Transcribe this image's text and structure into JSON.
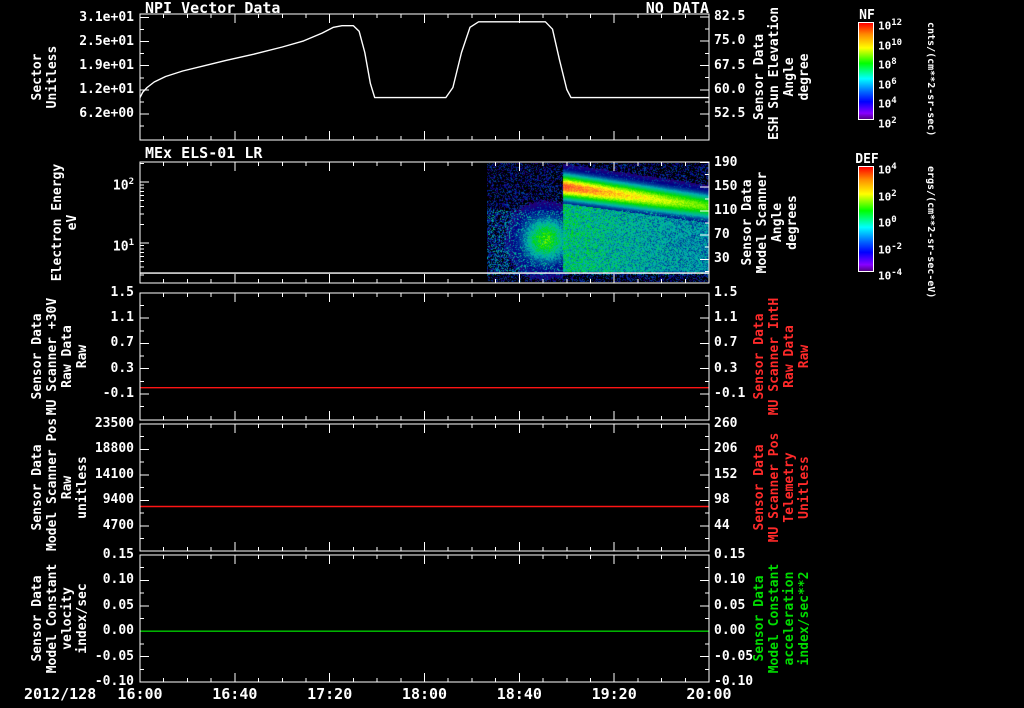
{
  "date_label": "2012/128",
  "x_axis": {
    "range_hours": [
      16,
      20
    ],
    "tick_hours": [
      16,
      16.6667,
      17.3333,
      18,
      18.6667,
      19.3333,
      20
    ],
    "tick_labels": [
      "16:00",
      "16:40",
      "17:20",
      "18:00",
      "18:40",
      "19:20",
      "20:00"
    ],
    "minor_tick_minutes": 10
  },
  "colorbars": [
    {
      "title": "NF",
      "unit": "cnts/(cm**2-sr-sec)",
      "ticks": [
        "10^12",
        "10^10",
        "10^8",
        "10^6",
        "10^4",
        "10^2"
      ]
    },
    {
      "title": "DEF",
      "unit": "ergs/(cm**2-sr-sec-eV)",
      "ticks": [
        "10^4",
        "10^2",
        "10^0",
        "10^-2",
        "10^-4"
      ]
    }
  ],
  "chart_data": [
    {
      "id": "npi-vector-data",
      "type": "line",
      "title": "NPI Vector Data",
      "note": "NO DATA",
      "left_axis": {
        "label": "Sector\nUnitless",
        "scale": "linear",
        "range": [
          -0.5,
          31.9
        ],
        "ticks": [
          {
            "v": 31.0,
            "t": "3.1e+01"
          },
          {
            "v": 24.8,
            "t": "2.5e+01"
          },
          {
            "v": 18.6,
            "t": "1.9e+01"
          },
          {
            "v": 12.4,
            "t": "1.2e+01"
          },
          {
            "v": 6.2,
            "t": "6.2e+00"
          }
        ]
      },
      "right_axis": {
        "label": "Sensor Data\nESH Sun Elevation\nAngle\ndegree",
        "scale": "linear",
        "range": [
          44.5,
          83.4
        ],
        "ticks": [
          {
            "v": 82.5,
            "t": "82.5"
          },
          {
            "v": 75.0,
            "t": "75.0"
          },
          {
            "v": 67.5,
            "t": "67.5"
          },
          {
            "v": 60.0,
            "t": "60.0"
          },
          {
            "v": 52.5,
            "t": "52.5"
          }
        ]
      },
      "series": [
        {
          "name": "esh-sun-elevation-angle",
          "axis": "right",
          "color": "#ffffff",
          "points": [
            [
              16.0,
              57.6
            ],
            [
              16.02,
              59.3
            ],
            [
              16.05,
              60.7
            ],
            [
              16.1,
              62.4
            ],
            [
              16.18,
              64.1
            ],
            [
              16.3,
              65.8
            ],
            [
              16.45,
              67.4
            ],
            [
              16.6,
              69.0
            ],
            [
              16.8,
              71.0
            ],
            [
              17.0,
              73.2
            ],
            [
              17.15,
              75.1
            ],
            [
              17.28,
              77.5
            ],
            [
              17.36,
              79.3
            ],
            [
              17.42,
              79.8
            ],
            [
              17.5,
              79.8
            ],
            [
              17.54,
              78.1
            ],
            [
              17.58,
              71.5
            ],
            [
              17.62,
              61.9
            ],
            [
              17.65,
              57.6
            ],
            [
              18.15,
              57.6
            ],
            [
              18.2,
              60.7
            ],
            [
              18.26,
              71.5
            ],
            [
              18.32,
              79.3
            ],
            [
              18.38,
              81.0
            ],
            [
              18.85,
              81.0
            ],
            [
              18.9,
              78.7
            ],
            [
              18.95,
              69.1
            ],
            [
              19.0,
              60.1
            ],
            [
              19.03,
              57.6
            ],
            [
              20.0,
              57.6
            ]
          ]
        }
      ]
    },
    {
      "id": "mex-els-01-lr",
      "type": "spectrogram",
      "title": "MEx ELS-01 LR",
      "left_axis": {
        "label": "Electron Energy\neV",
        "scale": "log",
        "range": [
          2.2,
          213
        ],
        "ticks": [
          {
            "v": 100,
            "t": "10^2"
          },
          {
            "v": 10,
            "t": "10^1"
          }
        ]
      },
      "right_axis": {
        "label": "Sensor Data\nModel Scanner\nAngle\ndegrees",
        "scale": "linear",
        "range": [
          -9.3,
          191
        ],
        "ticks": [
          {
            "v": 190,
            "t": "190"
          },
          {
            "v": 150,
            "t": "150"
          },
          {
            "v": 110,
            "t": "110"
          },
          {
            "v": 70,
            "t": "70"
          },
          {
            "v": 30,
            "t": "30"
          }
        ]
      },
      "series": [
        {
          "name": "lowest-energy-bin",
          "axis": "left",
          "color": "#ffffff",
          "points": [
            [
              16.0,
              3.2
            ],
            [
              20.0,
              3.2
            ]
          ]
        }
      ],
      "spectrogram": {
        "t_start": 18.44,
        "t_end": 20.0,
        "seed": 42,
        "band": {
          "t_start": 19.0,
          "center_ev_start": 85,
          "center_ev_end": 40
        },
        "blob": {
          "t_center": 18.85,
          "center_ev": 11
        }
      }
    },
    {
      "id": "mu-scanner-30v",
      "type": "line",
      "title": "",
      "left_axis": {
        "label": "Sensor Data\nMU Scanner +30V\nRaw Data\nRaw",
        "scale": "linear",
        "range": [
          -0.512,
          1.5
        ],
        "ticks": [
          {
            "v": 1.5,
            "t": "1.5"
          },
          {
            "v": 1.1,
            "t": "1.1"
          },
          {
            "v": 0.7,
            "t": "0.7"
          },
          {
            "v": 0.3,
            "t": "0.3"
          },
          {
            "v": -0.1,
            "t": "-0.1"
          }
        ]
      },
      "right_axis": {
        "label": "Sensor Data\nMU Scanner IntH\nRaw Data\nRaw",
        "scale": "linear",
        "range": [
          -0.512,
          1.5
        ],
        "ticks": [
          {
            "v": 1.5,
            "t": "1.5"
          },
          {
            "v": 1.1,
            "t": "1.1"
          },
          {
            "v": 0.7,
            "t": "0.7"
          },
          {
            "v": 0.3,
            "t": "0.3"
          },
          {
            "v": -0.1,
            "t": "-0.1"
          }
        ]
      },
      "series": [
        {
          "name": "mu-scanner-raw",
          "axis": "left",
          "color": "#ff1414",
          "points": [
            [
              16.0,
              0.0
            ],
            [
              20.0,
              0.0
            ]
          ]
        }
      ]
    },
    {
      "id": "model-scanner-pos",
      "type": "line",
      "title": "",
      "left_axis": {
        "label": "Sensor Data\nModel Scanner Pos\nRaw\nunitless",
        "scale": "linear",
        "range": [
          91,
          23500
        ],
        "ticks": [
          {
            "v": 23500,
            "t": "23500"
          },
          {
            "v": 18800,
            "t": "18800"
          },
          {
            "v": 14100,
            "t": "14100"
          },
          {
            "v": 9400,
            "t": "9400"
          },
          {
            "v": 4700,
            "t": "4700"
          }
        ]
      },
      "right_axis": {
        "label": "Sensor Data\nMU Scanner Pos\nTelemetry\nUnitless",
        "scale": "linear",
        "range": [
          -9,
          260
        ],
        "ticks": [
          {
            "v": 260,
            "t": "260"
          },
          {
            "v": 206,
            "t": "206"
          },
          {
            "v": 152,
            "t": "152"
          },
          {
            "v": 98,
            "t": "98"
          },
          {
            "v": 44,
            "t": "44"
          }
        ]
      },
      "series": [
        {
          "name": "model-scanner-pos-raw",
          "axis": "left",
          "color": "#ff1414",
          "points": [
            [
              16.0,
              8300
            ],
            [
              20.0,
              8300
            ]
          ]
        }
      ]
    },
    {
      "id": "model-constant",
      "type": "line",
      "title": "",
      "left_axis": {
        "label": "Sensor Data\nModel Constant\nvelocity\nindex/sec",
        "scale": "linear",
        "range": [
          -0.1,
          0.15
        ],
        "ticks": [
          {
            "v": 0.15,
            "t": "0.15"
          },
          {
            "v": 0.1,
            "t": "0.10"
          },
          {
            "v": 0.05,
            "t": "0.05"
          },
          {
            "v": 0.0,
            "t": "0.00"
          },
          {
            "v": -0.05,
            "t": "-0.05"
          },
          {
            "v": -0.1,
            "t": "-0.10"
          }
        ]
      },
      "right_axis": {
        "label": "Sensor Data\nModel Constant\nacceleration\nindex/sec**2",
        "scale": "linear",
        "range": [
          -0.1,
          0.15
        ],
        "ticks": [
          {
            "v": 0.15,
            "t": "0.15"
          },
          {
            "v": 0.1,
            "t": "0.10"
          },
          {
            "v": 0.05,
            "t": "0.05"
          },
          {
            "v": 0.0,
            "t": "0.00"
          },
          {
            "v": -0.05,
            "t": "-0.05"
          },
          {
            "v": -0.1,
            "t": "-0.10"
          }
        ]
      },
      "series": [
        {
          "name": "model-constant-velocity",
          "axis": "left",
          "color": "#00cc00",
          "points": [
            [
              16.0,
              0.0
            ],
            [
              20.0,
              0.0
            ]
          ]
        }
      ]
    }
  ]
}
